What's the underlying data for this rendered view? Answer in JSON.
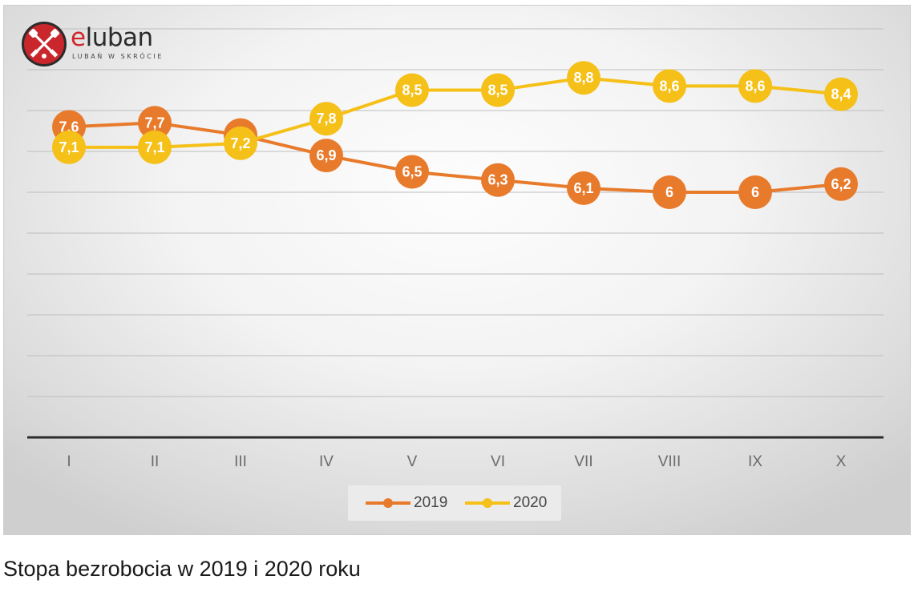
{
  "logo": {
    "word_accent": "e",
    "word_rest": "luban",
    "tagline": "LUBAŃ W SKRÓCIE"
  },
  "caption": "Stopa bezrobocia w 2019 i 2020 roku",
  "chart_data": {
    "type": "line",
    "title": "",
    "xlabel": "",
    "ylabel": "",
    "categories": [
      "I",
      "II",
      "III",
      "IV",
      "V",
      "VI",
      "VII",
      "VIII",
      "IX",
      "X"
    ],
    "ylim": [
      0,
      10
    ],
    "y_gridlines": 10,
    "y_tick_labels_visible": false,
    "grid": true,
    "legend": "bottom-center",
    "series": [
      {
        "name": "2019",
        "color": "#e87a2c",
        "values": [
          7.6,
          7.7,
          7.4,
          6.9,
          6.5,
          6.3,
          6.1,
          6,
          6,
          6.2
        ],
        "labels": [
          "7,6",
          "7,7",
          "7,4",
          "6,9",
          "6,5",
          "6,3",
          "6,1",
          "6",
          "6",
          "6,2"
        ]
      },
      {
        "name": "2020",
        "color": "#f5c018",
        "values": [
          7.1,
          7.1,
          7.2,
          7.8,
          8.5,
          8.5,
          8.8,
          8.6,
          8.6,
          8.4
        ],
        "labels": [
          "7,1",
          "7,1",
          "7,2",
          "7,8",
          "8,5",
          "8,5",
          "8,8",
          "8,6",
          "8,6",
          "8,4"
        ]
      }
    ]
  }
}
